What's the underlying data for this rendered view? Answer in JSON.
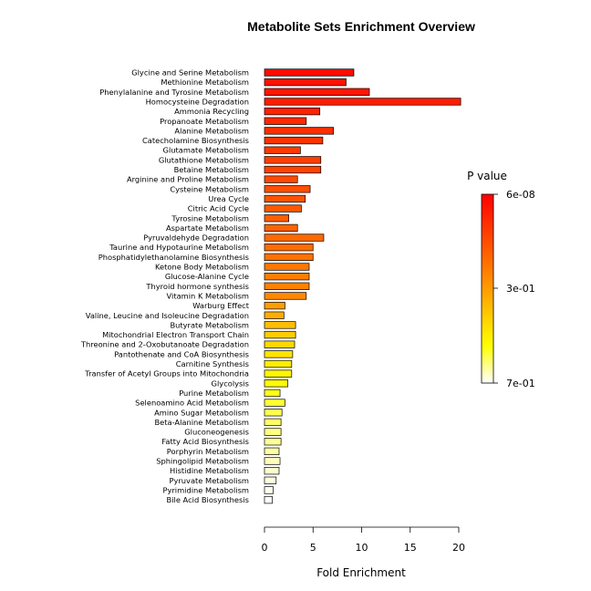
{
  "chart_data": {
    "type": "bar",
    "orientation": "horizontal",
    "title": "Metabolite Sets Enrichment Overview",
    "xlabel": "Fold Enrichment",
    "xlim": [
      0,
      20
    ],
    "xticks": [
      "0",
      "5",
      "10",
      "15",
      "20"
    ],
    "legend_title": "P value",
    "legend_ticks": [
      "6e-08",
      "3e-01",
      "7e-01"
    ],
    "color_scale": [
      "#ff0000",
      "#ff8c00",
      "#ffff00",
      "#ffffff"
    ],
    "categories": [
      "Glycine and Serine Metabolism",
      "Methionine Metabolism",
      "Phenylalanine and Tyrosine Metabolism",
      "Homocysteine Degradation",
      "Ammonia Recycling",
      "Propanoate Metabolism",
      "Alanine Metabolism",
      "Catecholamine Biosynthesis",
      "Glutamate Metabolism",
      "Glutathione Metabolism",
      "Betaine Metabolism",
      "Arginine and Proline Metabolism",
      "Cysteine Metabolism",
      "Urea Cycle",
      "Citric Acid Cycle",
      "Tyrosine Metabolism",
      "Aspartate Metabolism",
      "Pyruvaldehyde Degradation",
      "Taurine and Hypotaurine Metabolism",
      "Phosphatidylethanolamine Biosynthesis",
      "Ketone Body Metabolism",
      "Glucose-Alanine Cycle",
      "Thyroid hormone synthesis",
      "Vitamin K Metabolism",
      "Warburg Effect",
      "Valine, Leucine and Isoleucine Degradation",
      "Butyrate Metabolism",
      "Mitochondrial Electron Transport Chain",
      "Threonine and 2-Oxobutanoate Degradation",
      "Pantothenate and CoA Biosynthesis",
      "Carnitine Synthesis",
      "Transfer of Acetyl Groups into Mitochondria",
      "Glycolysis",
      "Purine Metabolism",
      "Selenoamino Acid Metabolism",
      "Amino Sugar Metabolism",
      "Beta-Alanine Metabolism",
      "Gluconeogenesis",
      "Fatty Acid Biosynthesis",
      "Porphyrin Metabolism",
      "Sphingolipid Metabolism",
      "Histidine Metabolism",
      "Pyruvate Metabolism",
      "Pyrimidine Metabolism",
      "Bile Acid Biosynthesis"
    ],
    "values": [
      9.2,
      8.4,
      10.8,
      20.2,
      5.7,
      4.3,
      7.1,
      6.0,
      3.7,
      5.8,
      5.8,
      3.4,
      4.7,
      4.2,
      3.8,
      2.5,
      3.4,
      6.1,
      5.0,
      5.0,
      4.6,
      4.6,
      4.6,
      4.3,
      2.1,
      2.0,
      3.2,
      3.2,
      3.1,
      2.9,
      2.8,
      2.8,
      2.4,
      1.6,
      2.1,
      1.8,
      1.7,
      1.7,
      1.7,
      1.5,
      1.6,
      1.5,
      1.2,
      0.9,
      0.8
    ],
    "bar_colors": [
      "#ff0c00",
      "#ff1200",
      "#ff1700",
      "#ff1d00",
      "#ff2300",
      "#ff2800",
      "#ff2e00",
      "#ff3300",
      "#ff3900",
      "#ff3e00",
      "#ff4300",
      "#ff4900",
      "#ff4e00",
      "#ff5300",
      "#ff5800",
      "#ff5d00",
      "#ff6300",
      "#ff6800",
      "#ff6d00",
      "#ff7200",
      "#ff7700",
      "#ff7d00",
      "#ff8200",
      "#ff8800",
      "#ff9e00",
      "#ffae00",
      "#ffbe00",
      "#ffcc00",
      "#ffd800",
      "#ffe400",
      "#ffee00",
      "#fff600",
      "#fffc00",
      "#ffff1a",
      "#ffff33",
      "#ffff4d",
      "#ffff66",
      "#ffff80",
      "#ffff99",
      "#ffffaa",
      "#ffffbb",
      "#ffffcc",
      "#ffffdd",
      "#ffffee",
      "#ffffff"
    ]
  }
}
